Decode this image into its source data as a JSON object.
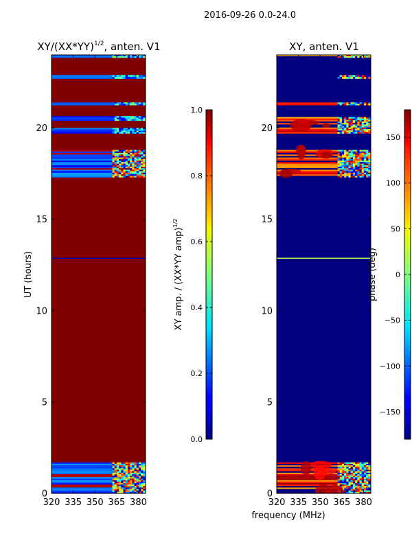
{
  "suptitle": "2016-09-26 0.0-24.0",
  "chart_data": [
    {
      "type": "heatmap",
      "title_main": "XY/(XX*YY)",
      "title_sup": "1/2",
      "title_tail": ", anten. V1",
      "xlabel": "",
      "ylabel": "UT (hours)",
      "xlim": [
        320,
        385
      ],
      "ylim": [
        0,
        24
      ],
      "xticks": [
        320,
        335,
        350,
        365,
        380
      ],
      "yticks": [
        0,
        5,
        10,
        15,
        20
      ],
      "colorbar": {
        "label_main": "XY amp. / (XX*YY amp)",
        "label_sup": "1/2",
        "range": [
          0.0,
          1.0
        ],
        "ticks": [
          "0.0",
          "0.2",
          "0.4",
          "0.6",
          "0.8",
          "1.0"
        ],
        "tick_values": [
          0.0,
          0.2,
          0.4,
          0.6,
          0.8,
          1.0
        ],
        "colormap": "jet"
      },
      "background_value": 1.0,
      "bands": [
        {
          "ut_range": [
            0.0,
            1.7
          ],
          "pattern": "mixed-low",
          "note": "blue with red stripes, noisy above 362 MHz"
        },
        {
          "ut_range": [
            12.85,
            12.9
          ],
          "pattern": "line-low"
        },
        {
          "ut_range": [
            17.3,
            18.8
          ],
          "pattern": "mixed-low",
          "note": "blue with mottled structure, noisy above 362 MHz"
        },
        {
          "ut_range": [
            19.7,
            20.0
          ],
          "pattern": "low"
        },
        {
          "ut_range": [
            20.4,
            20.65
          ],
          "pattern": "low"
        },
        {
          "ut_range": [
            21.25,
            21.4
          ],
          "pattern": "low"
        },
        {
          "ut_range": [
            22.7,
            22.9
          ],
          "pattern": "low"
        },
        {
          "ut_range": [
            23.85,
            24.0
          ],
          "pattern": "low"
        }
      ]
    },
    {
      "type": "heatmap",
      "title_main": "XY, anten. V1",
      "xlabel": "frequency (MHz)",
      "ylabel": "",
      "xlim": [
        320,
        385
      ],
      "ylim": [
        0,
        24
      ],
      "xticks": [
        320,
        335,
        350,
        365,
        380
      ],
      "yticks": [
        0,
        5,
        10,
        15,
        20
      ],
      "colorbar": {
        "label_main": "phase (deg)",
        "range": [
          -180,
          180
        ],
        "ticks": [
          "150",
          "100",
          "50",
          "0",
          "−50",
          "−100",
          "−150"
        ],
        "tick_values": [
          150,
          100,
          50,
          0,
          -50,
          -100,
          -150
        ],
        "colormap": "jet"
      },
      "background_value": -180,
      "bands": [
        {
          "ut_range": [
            0.0,
            1.7
          ],
          "pattern": "phase-noise",
          "note": "red/orange at low freq, mixed colors above 362 MHz"
        },
        {
          "ut_range": [
            12.85,
            12.9
          ],
          "pattern": "line-high"
        },
        {
          "ut_range": [
            17.3,
            18.8
          ],
          "pattern": "phase-noise",
          "note": "red/orange blobs with horizontal dark stripes"
        },
        {
          "ut_range": [
            19.7,
            20.6
          ],
          "pattern": "phase-noise"
        },
        {
          "ut_range": [
            21.25,
            21.4
          ],
          "pattern": "phase-noise"
        },
        {
          "ut_range": [
            22.7,
            22.9
          ],
          "pattern": "phase-noise"
        },
        {
          "ut_range": [
            23.85,
            24.0
          ],
          "pattern": "phase-noise"
        }
      ]
    }
  ]
}
